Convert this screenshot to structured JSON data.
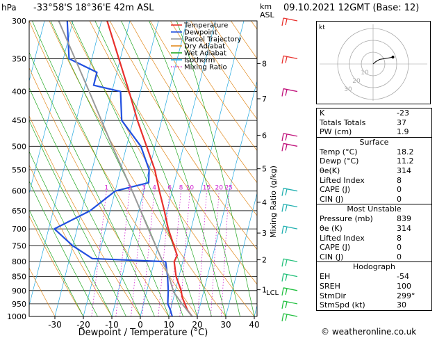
{
  "header": {
    "hpa_label": "hPa",
    "location": "-33°58'S  18°36'E  42m  ASL",
    "km_label": "km",
    "asl_label": "ASL",
    "datetime": "09.10.2021  12GMT  (Base: 12)"
  },
  "legend": [
    {
      "name": "Temperature",
      "color": "#e8302c"
    },
    {
      "name": "Dewpoint",
      "color": "#2250e0"
    },
    {
      "name": "Parcel Trajectory",
      "color": "#999999"
    },
    {
      "name": "Dry Adiabat",
      "color": "#e28a1e"
    },
    {
      "name": "Wet Adiabat",
      "color": "#22a822"
    },
    {
      "name": "Isotherm",
      "color": "#22a8e0"
    },
    {
      "name": "Mixing Ratio",
      "color": "#d020d0"
    }
  ],
  "chart_data": {
    "type": "line",
    "xlabel": "Dewpoint / Temperature (°C)",
    "ylabel": "",
    "right_label": "Mixing Ratio (g/kg)",
    "x_ticks": [
      -30,
      -20,
      -10,
      0,
      10,
      20,
      30,
      40
    ],
    "pressure_levels": [
      300,
      350,
      400,
      450,
      500,
      550,
      600,
      650,
      700,
      750,
      800,
      850,
      900,
      950,
      1000
    ],
    "km_ticks": [
      {
        "label": "8",
        "p": 357
      },
      {
        "label": "7",
        "p": 412
      },
      {
        "label": "6",
        "p": 478
      },
      {
        "label": "5",
        "p": 548
      },
      {
        "label": "4",
        "p": 628
      },
      {
        "label": "3",
        "p": 712
      },
      {
        "label": "2",
        "p": 794
      },
      {
        "label": "1",
        "p": 897
      }
    ],
    "lcl_label": "LCL",
    "lcl_p": 905,
    "mixing_ratio_labels": [
      "1",
      "2",
      "3",
      "4",
      "6",
      "8",
      "10",
      "15",
      "20",
      "25"
    ],
    "mixing_ratio_values": [
      1,
      2,
      3,
      4,
      6,
      8,
      10,
      15,
      20,
      25
    ],
    "series": [
      {
        "name": "Temperature",
        "color": "#e8302c",
        "points": [
          [
            1000,
            18.2
          ],
          [
            975,
            16
          ],
          [
            950,
            14.5
          ],
          [
            925,
            13
          ],
          [
            900,
            12
          ],
          [
            850,
            9
          ],
          [
            800,
            7
          ],
          [
            780,
            7.5
          ],
          [
            750,
            5.5
          ],
          [
            700,
            2
          ],
          [
            650,
            -1
          ],
          [
            600,
            -4.5
          ],
          [
            550,
            -8
          ],
          [
            500,
            -13
          ],
          [
            450,
            -18.5
          ],
          [
            400,
            -24
          ],
          [
            350,
            -30.5
          ],
          [
            300,
            -38
          ]
        ]
      },
      {
        "name": "Dewpoint",
        "color": "#2250e0",
        "points": [
          [
            1000,
            11.2
          ],
          [
            975,
            10
          ],
          [
            950,
            8.5
          ],
          [
            925,
            8
          ],
          [
            900,
            7.5
          ],
          [
            850,
            6
          ],
          [
            800,
            4
          ],
          [
            790,
            -22
          ],
          [
            750,
            -30
          ],
          [
            700,
            -38
          ],
          [
            650,
            -27
          ],
          [
            600,
            -20
          ],
          [
            580,
            -9
          ],
          [
            550,
            -10
          ],
          [
            500,
            -15
          ],
          [
            450,
            -24
          ],
          [
            400,
            -27
          ],
          [
            390,
            -37
          ],
          [
            370,
            -37
          ],
          [
            350,
            -48
          ],
          [
            300,
            -52
          ]
        ]
      },
      {
        "name": "Parcel Trajectory",
        "color": "#999999",
        "points": [
          [
            1000,
            18.2
          ],
          [
            950,
            13.5
          ],
          [
            905,
            9.5
          ],
          [
            850,
            6.5
          ],
          [
            800,
            3
          ],
          [
            700,
            -5
          ],
          [
            600,
            -14
          ],
          [
            500,
            -25
          ],
          [
            400,
            -38
          ],
          [
            300,
            -55
          ]
        ]
      }
    ]
  },
  "hodograph": {
    "label": "kt",
    "ring_labels": [
      "10",
      "20",
      "30"
    ],
    "points": [
      [
        0,
        0
      ],
      [
        4,
        -6
      ],
      [
        10,
        -12
      ],
      [
        18,
        -14
      ],
      [
        24,
        -16
      ],
      [
        30,
        -18
      ]
    ]
  },
  "indices": {
    "top": [
      {
        "label": "K",
        "value": "-23"
      },
      {
        "label": "Totals Totals",
        "value": "37"
      },
      {
        "label": "PW (cm)",
        "value": "1.9"
      }
    ],
    "surface": {
      "title": "Surface",
      "rows": [
        {
          "label": "Temp (°C)",
          "value": "18.2"
        },
        {
          "label": "Dewp (°C)",
          "value": "11.2"
        },
        {
          "label": "θe(K)",
          "value": "314"
        },
        {
          "label": "Lifted Index",
          "value": "8"
        },
        {
          "label": "CAPE (J)",
          "value": "0"
        },
        {
          "label": "CIN (J)",
          "value": "0"
        }
      ]
    },
    "most_unstable": {
      "title": "Most Unstable",
      "rows": [
        {
          "label": "Pressure (mb)",
          "value": "839"
        },
        {
          "label": "θe (K)",
          "value": "314"
        },
        {
          "label": "Lifted Index",
          "value": "8"
        },
        {
          "label": "CAPE (J)",
          "value": "0"
        },
        {
          "label": "CIN (J)",
          "value": "0"
        }
      ]
    },
    "hodograph_box": {
      "title": "Hodograph",
      "rows": [
        {
          "label": "EH",
          "value": "-54"
        },
        {
          "label": "SREH",
          "value": "100"
        },
        {
          "label": "StmDir",
          "value": "299°"
        },
        {
          "label": "StmSpd (kt)",
          "value": "30"
        }
      ]
    }
  },
  "wind_barbs": [
    {
      "p": 300,
      "color": "#e8302c"
    },
    {
      "p": 350,
      "color": "#e8302c"
    },
    {
      "p": 400,
      "color": "#c0107a"
    },
    {
      "p": 480,
      "color": "#c0107a"
    },
    {
      "p": 500,
      "color": "#c0107a"
    },
    {
      "p": 600,
      "color": "#22b0b0"
    },
    {
      "p": 640,
      "color": "#22b0b0"
    },
    {
      "p": 700,
      "color": "#22b0b0"
    },
    {
      "p": 800,
      "color": "#22c07a"
    },
    {
      "p": 850,
      "color": "#22c07a"
    },
    {
      "p": 900,
      "color": "#22c040"
    },
    {
      "p": 950,
      "color": "#22c040"
    },
    {
      "p": 1000,
      "color": "#22c040"
    }
  ],
  "credit": "© weatheronline.co.uk"
}
